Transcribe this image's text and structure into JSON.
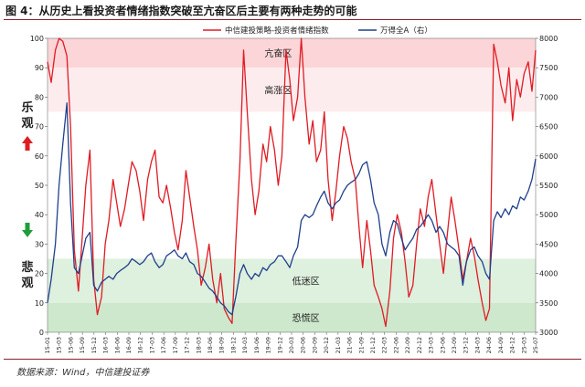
{
  "title": "图 4：从历史上看投资者情绪指数突破至亢奋区后主要有两种走势的可能",
  "source": "数据来源：Wind，中信建投证券",
  "colors": {
    "sentiment": "#e01b24",
    "wind": "#1f3f8c",
    "hot_band": "#fbd5d7",
    "warm_band": "#fdecee",
    "cold_band": "#def0de",
    "panic_band": "#cde8cd",
    "rule": "#8a1f2a"
  },
  "side_labels": {
    "optimistic": [
      "乐",
      "观"
    ],
    "pessimistic": [
      "悲",
      "观"
    ]
  },
  "chart_data": {
    "type": "line",
    "xlabel": "",
    "ylabel_left": "",
    "ylabel_right": "",
    "left_axis": {
      "ylim": [
        0,
        100
      ],
      "ticks": [
        "0",
        "10",
        "20",
        "30",
        "40",
        "50",
        "60",
        "70",
        "80",
        "90",
        "100"
      ]
    },
    "right_axis": {
      "ylim": [
        3000,
        8000
      ],
      "ticks": [
        "3000",
        "3500",
        "4000",
        "4500",
        "5000",
        "5500",
        "6000",
        "6500",
        "7000",
        "7500",
        "8000"
      ]
    },
    "grid": false,
    "legend_position": "top-right",
    "zones": [
      {
        "label": "亢奋区",
        "range": [
          90,
          100
        ]
      },
      {
        "label": "高涨区",
        "range": [
          75,
          90
        ]
      },
      {
        "label": "低迷区",
        "range": [
          10,
          25
        ]
      },
      {
        "label": "恐慌区",
        "range": [
          0,
          10
        ]
      }
    ],
    "x_ticks": [
      "15-01",
      "15-03",
      "15-06",
      "15-09",
      "15-12",
      "16-03",
      "16-06",
      "16-09",
      "16-12",
      "17-03",
      "17-06",
      "17-09",
      "17-12",
      "18-03",
      "18-06",
      "18-09",
      "18-12",
      "19-03",
      "19-06",
      "19-09",
      "19-12",
      "20-03",
      "20-06",
      "20-09",
      "20-12",
      "21-03",
      "21-06",
      "21-09",
      "21-12",
      "22-03",
      "22-06",
      "22-09",
      "22-12",
      "23-03",
      "23-06",
      "23-09",
      "23-12",
      "24-03",
      "24-06",
      "24-09",
      "24-12",
      "25-03",
      "25-07"
    ],
    "series": [
      {
        "name": "中信建投策略-投资者情绪指数",
        "axis": "left",
        "x": [
          2015.0,
          2015.08,
          2015.17,
          2015.25,
          2015.33,
          2015.42,
          2015.5,
          2015.58,
          2015.67,
          2015.75,
          2015.83,
          2015.92,
          2016.0,
          2016.08,
          2016.17,
          2016.25,
          2016.33,
          2016.42,
          2016.5,
          2016.58,
          2016.67,
          2016.75,
          2016.83,
          2016.92,
          2017.0,
          2017.08,
          2017.17,
          2017.25,
          2017.33,
          2017.42,
          2017.5,
          2017.58,
          2017.67,
          2017.75,
          2017.83,
          2017.92,
          2018.0,
          2018.08,
          2018.17,
          2018.25,
          2018.33,
          2018.42,
          2018.5,
          2018.58,
          2018.67,
          2018.75,
          2018.83,
          2018.92,
          2019.0,
          2019.08,
          2019.17,
          2019.25,
          2019.33,
          2019.42,
          2019.5,
          2019.58,
          2019.67,
          2019.75,
          2019.83,
          2019.92,
          2020.0,
          2020.08,
          2020.17,
          2020.25,
          2020.33,
          2020.42,
          2020.5,
          2020.58,
          2020.67,
          2020.75,
          2020.83,
          2020.92,
          2021.0,
          2021.08,
          2021.17,
          2021.25,
          2021.33,
          2021.42,
          2021.5,
          2021.58,
          2021.67,
          2021.75,
          2021.83,
          2021.92,
          2022.0,
          2022.08,
          2022.17,
          2022.25,
          2022.33,
          2022.42,
          2022.5,
          2022.58,
          2022.67,
          2022.75,
          2022.83,
          2022.92,
          2023.0,
          2023.08,
          2023.17,
          2023.25,
          2023.33,
          2023.42,
          2023.5,
          2023.58,
          2023.67,
          2023.75,
          2023.83,
          2023.92,
          2024.0,
          2024.08,
          2024.17,
          2024.25,
          2024.33,
          2024.42,
          2024.5,
          2024.58,
          2024.67,
          2024.75,
          2024.83,
          2024.92,
          2025.0,
          2025.08,
          2025.17,
          2025.25,
          2025.33,
          2025.42,
          2025.5,
          2025.58
        ],
        "values": [
          92,
          85,
          96,
          100,
          99,
          94,
          70,
          28,
          14,
          32,
          50,
          62,
          18,
          6,
          12,
          30,
          38,
          52,
          44,
          36,
          42,
          50,
          58,
          55,
          48,
          38,
          52,
          58,
          62,
          46,
          44,
          50,
          42,
          34,
          28,
          38,
          55,
          46,
          36,
          28,
          16,
          22,
          30,
          18,
          10,
          20,
          8,
          5,
          3,
          30,
          58,
          96,
          75,
          52,
          40,
          48,
          64,
          58,
          70,
          62,
          50,
          60,
          96,
          86,
          72,
          80,
          100,
          80,
          64,
          72,
          58,
          62,
          75,
          52,
          38,
          48,
          60,
          70,
          66,
          58,
          52,
          36,
          22,
          38,
          28,
          16,
          12,
          8,
          2,
          14,
          32,
          40,
          34,
          24,
          12,
          16,
          30,
          42,
          36,
          46,
          52,
          40,
          30,
          20,
          34,
          46,
          38,
          28,
          18,
          24,
          32,
          26,
          18,
          10,
          4,
          8,
          98,
          92,
          84,
          78,
          90,
          72,
          86,
          80,
          88,
          92,
          82,
          96
        ]
      },
      {
        "name": "万得全A（右）",
        "axis": "right",
        "x": [
          2015.0,
          2015.08,
          2015.17,
          2015.25,
          2015.33,
          2015.42,
          2015.5,
          2015.58,
          2015.67,
          2015.75,
          2015.83,
          2015.92,
          2016.0,
          2016.08,
          2016.17,
          2016.25,
          2016.33,
          2016.42,
          2016.5,
          2016.58,
          2016.67,
          2016.75,
          2016.83,
          2016.92,
          2017.0,
          2017.08,
          2017.17,
          2017.25,
          2017.33,
          2017.42,
          2017.5,
          2017.58,
          2017.67,
          2017.75,
          2017.83,
          2017.92,
          2018.0,
          2018.08,
          2018.17,
          2018.25,
          2018.33,
          2018.42,
          2018.5,
          2018.58,
          2018.67,
          2018.75,
          2018.83,
          2018.92,
          2019.0,
          2019.08,
          2019.17,
          2019.25,
          2019.33,
          2019.42,
          2019.5,
          2019.58,
          2019.67,
          2019.75,
          2019.83,
          2019.92,
          2020.0,
          2020.08,
          2020.17,
          2020.25,
          2020.33,
          2020.42,
          2020.5,
          2020.58,
          2020.67,
          2020.75,
          2020.83,
          2020.92,
          2021.0,
          2021.08,
          2021.17,
          2021.25,
          2021.33,
          2021.42,
          2021.5,
          2021.58,
          2021.67,
          2021.75,
          2021.83,
          2021.92,
          2022.0,
          2022.08,
          2022.17,
          2022.25,
          2022.33,
          2022.42,
          2022.5,
          2022.58,
          2022.67,
          2022.75,
          2022.83,
          2022.92,
          2023.0,
          2023.08,
          2023.17,
          2023.25,
          2023.33,
          2023.42,
          2023.5,
          2023.58,
          2023.67,
          2023.75,
          2023.83,
          2023.92,
          2024.0,
          2024.08,
          2024.17,
          2024.25,
          2024.33,
          2024.42,
          2024.5,
          2024.58,
          2024.67,
          2024.75,
          2024.83,
          2024.92,
          2025.0,
          2025.08,
          2025.17,
          2025.25,
          2025.33,
          2025.42,
          2025.5,
          2025.58
        ],
        "values": [
          3500,
          3900,
          4500,
          5500,
          6200,
          6900,
          5200,
          4100,
          4000,
          4300,
          4600,
          4700,
          3800,
          3700,
          3850,
          3900,
          3950,
          3900,
          4000,
          4050,
          4100,
          4150,
          4250,
          4200,
          4150,
          4200,
          4300,
          4350,
          4200,
          4100,
          4150,
          4300,
          4350,
          4400,
          4300,
          4250,
          4350,
          4200,
          4150,
          4000,
          3950,
          3850,
          3750,
          3700,
          3600,
          3500,
          3450,
          3350,
          3300,
          3600,
          4000,
          4150,
          4000,
          3900,
          4000,
          3950,
          4100,
          4050,
          4150,
          4200,
          4300,
          4300,
          4200,
          4100,
          4300,
          4450,
          4900,
          5000,
          4950,
          5000,
          5150,
          5300,
          5400,
          5200,
          5100,
          5200,
          5250,
          5400,
          5500,
          5550,
          5600,
          5700,
          5850,
          5900,
          5600,
          5200,
          5000,
          4500,
          4300,
          4700,
          4900,
          4850,
          4600,
          4400,
          4500,
          4600,
          4750,
          4800,
          4900,
          5000,
          4900,
          4700,
          4800,
          4700,
          4500,
          4450,
          4400,
          4300,
          3800,
          4200,
          4400,
          4450,
          4300,
          4200,
          4000,
          3900,
          4900,
          5050,
          4950,
          5100,
          5000,
          5150,
          5100,
          5300,
          5250,
          5400,
          5600,
          5950
        ]
      }
    ]
  }
}
